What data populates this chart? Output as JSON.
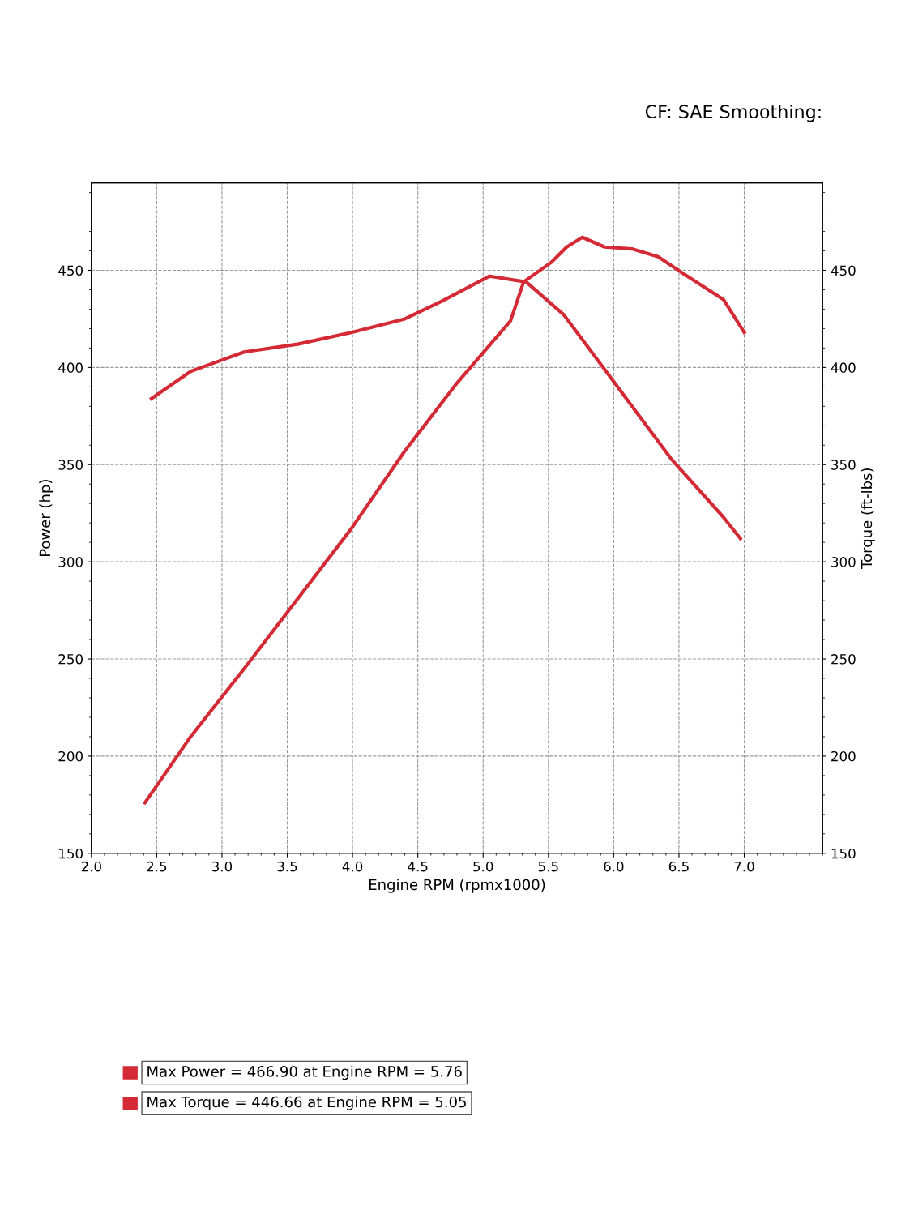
{
  "chart_data": {
    "type": "line",
    "subtitle": "CF: SAE Smoothing:",
    "xlabel": "Engine RPM (rpmx1000)",
    "ylabel": "Power (hp)",
    "y2label": "Torque (ft-lbs)",
    "x": [
      2.41,
      2.76,
      3.17,
      3.58,
      3.99,
      4.4,
      4.8,
      5.21,
      5.31,
      5.52,
      5.64,
      5.76,
      5.93,
      6.14,
      6.34,
      6.54,
      6.84,
      7.0
    ],
    "series": [
      {
        "color": "#d42a36",
        "values": [
          176,
          210,
          245,
          281,
          317,
          357,
          392,
          424,
          444,
          454,
          462,
          467,
          462,
          461,
          457,
          448,
          435,
          418
        ]
      },
      {
        "color": "#d42a36",
        "x": [
          2.46,
          2.76,
          3.17,
          3.58,
          3.99,
          4.4,
          4.68,
          5.05,
          5.33,
          5.62,
          6.03,
          6.44,
          6.84,
          6.97
        ],
        "values": [
          384,
          398,
          408,
          412,
          418,
          425,
          434,
          447,
          444,
          427,
          390,
          353,
          323,
          312
        ]
      }
    ],
    "annotations": [
      "Max Power = 466.90 at Engine RPM = 5.76",
      "Max Torque = 446.66 at Engine RPM = 5.05"
    ],
    "xlim": [
      2.0,
      7.6
    ],
    "xticks": [
      {
        "value": 2,
        "label": "2.0"
      },
      2.5,
      {
        "value": 3,
        "label": "3.0"
      },
      3.5,
      {
        "value": 4,
        "label": "4.0"
      },
      4.5,
      {
        "value": 5,
        "label": "5.0"
      },
      5.5,
      {
        "value": 6,
        "label": "6.0"
      },
      6.5,
      {
        "value": 7,
        "label": "7.0"
      }
    ],
    "ylim": [
      150,
      495
    ],
    "yticks": [
      150,
      200,
      250,
      300,
      350,
      400,
      450
    ],
    "y2lim": [
      150,
      495
    ],
    "y2ticks": [
      150,
      200,
      250,
      300,
      350,
      400,
      450
    ],
    "grid": true,
    "marker": "none",
    "line_style": "solid"
  }
}
